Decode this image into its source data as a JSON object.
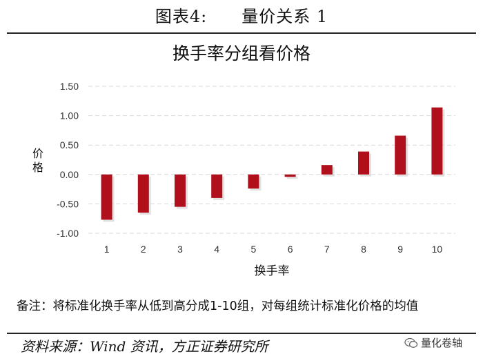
{
  "figure_title": "图表4:　　量价关系 1",
  "note": "备注：将标准化换手率从低到高分成1-10组，对每组统计标准化价格的均值",
  "source": "资料来源：Wind 资讯，方正证券研究所",
  "brand": {
    "text": "量化卷轴",
    "icon": "wechat-icon"
  },
  "colors": {
    "bar": "#b0101c",
    "grid": "#d9d9d9",
    "text": "#333333"
  },
  "chart_data": {
    "type": "bar",
    "title": "换手率分组看价格",
    "xlabel": "换手率",
    "ylabel": "价格",
    "categories": [
      "1",
      "2",
      "3",
      "4",
      "5",
      "6",
      "7",
      "8",
      "9",
      "10"
    ],
    "values": [
      -0.77,
      -0.65,
      -0.55,
      -0.4,
      -0.24,
      -0.04,
      0.16,
      0.39,
      0.66,
      1.14
    ],
    "ylim": [
      -1.0,
      1.5
    ],
    "yticks": [
      "-1.00",
      "-0.50",
      "0.00",
      "0.50",
      "1.00",
      "1.50"
    ],
    "grid": true,
    "legend": false
  }
}
